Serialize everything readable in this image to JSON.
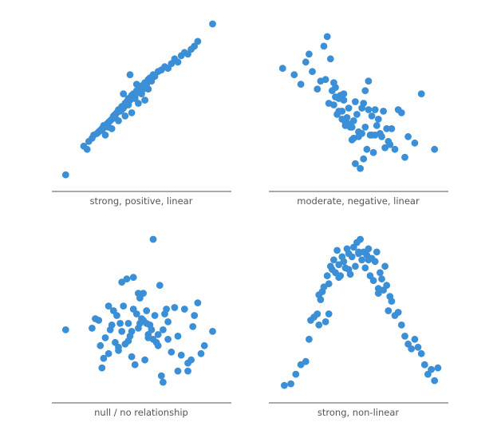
{
  "colors": {
    "points": "#3a8fd6",
    "axis": "#555555",
    "label": "#555555",
    "background": "#ffffff"
  },
  "chart_data": [
    {
      "type": "scatter",
      "title": "",
      "xlabel": "strong, positive, linear",
      "ylabel": "",
      "grid": false,
      "xlim": [
        0,
        10
      ],
      "ylim": [
        0,
        10
      ],
      "x": [
        0.4,
        1.5,
        1.7,
        1.8,
        2.0,
        2.1,
        2.3,
        2.5,
        2.6,
        2.7,
        2.8,
        2.9,
        3.0,
        3.1,
        3.2,
        3.3,
        3.4,
        3.5,
        3.6,
        3.7,
        3.8,
        3.9,
        4.0,
        4.1,
        4.2,
        4.3,
        4.4,
        4.5,
        4.6,
        4.7,
        4.8,
        4.9,
        5.0,
        5.1,
        5.2,
        5.3,
        5.4,
        5.5,
        5.6,
        5.7,
        5.8,
        6.0,
        6.2,
        6.4,
        6.6,
        6.8,
        7.0,
        7.2,
        7.4,
        7.6,
        7.8,
        8.0,
        8.2,
        8.4,
        9.3,
        2.4,
        2.6,
        2.8,
        3.0,
        3.2,
        3.4,
        3.6,
        3.8,
        4.0,
        4.2,
        4.4,
        4.6,
        4.8,
        5.0,
        5.2,
        5.4,
        4.3,
        4.7,
        3.9,
        4.1
      ],
      "y": [
        0.5,
        2.3,
        2.1,
        2.6,
        2.8,
        3.0,
        3.1,
        3.3,
        3.4,
        3.6,
        3.5,
        3.7,
        3.8,
        3.9,
        4.0,
        4.2,
        4.1,
        4.4,
        4.6,
        4.5,
        4.8,
        4.7,
        5.0,
        5.1,
        5.3,
        5.2,
        5.5,
        5.6,
        5.4,
        5.8,
        5.7,
        6.0,
        6.1,
        5.9,
        6.3,
        6.2,
        6.5,
        6.6,
        6.4,
        6.8,
        6.7,
        7.0,
        7.1,
        7.3,
        7.2,
        7.5,
        7.8,
        7.6,
        8.0,
        8.2,
        8.1,
        8.4,
        8.6,
        8.9,
        10.0,
        3.2,
        3.3,
        3.0,
        3.5,
        3.4,
        4.3,
        3.9,
        4.6,
        4.2,
        4.9,
        4.4,
        5.3,
        5.0,
        5.6,
        5.2,
        5.9,
        6.8,
        6.2,
        5.6,
        4.9
      ]
    },
    {
      "type": "scatter",
      "title": "",
      "xlabel": "moderate, negative, linear",
      "ylabel": "",
      "grid": false,
      "xlim": [
        0,
        10
      ],
      "ylim": [
        0,
        10
      ],
      "x": [
        0.4,
        1.1,
        1.5,
        1.8,
        2.0,
        2.2,
        2.5,
        2.7,
        2.9,
        3.0,
        3.1,
        3.2,
        3.3,
        3.4,
        3.5,
        3.6,
        3.7,
        3.8,
        3.9,
        4.0,
        4.1,
        4.2,
        4.3,
        4.4,
        4.5,
        4.6,
        4.7,
        4.8,
        4.9,
        5.0,
        5.1,
        5.2,
        5.3,
        5.4,
        5.5,
        5.6,
        5.7,
        5.8,
        5.9,
        6.0,
        6.1,
        6.2,
        6.3,
        6.4,
        6.5,
        6.6,
        6.7,
        6.8,
        6.9,
        7.0,
        7.2,
        7.4,
        7.6,
        7.8,
        8.0,
        8.4,
        8.8,
        9.6,
        3.6,
        3.8,
        4.0,
        4.2,
        4.4,
        4.6,
        4.8,
        5.0,
        5.2,
        5.4,
        5.6,
        5.8,
        6.0,
        3.5,
        4.1,
        4.7,
        5.3
      ],
      "y": [
        7.2,
        6.8,
        6.2,
        7.6,
        8.1,
        7.0,
        5.9,
        6.4,
        8.6,
        6.5,
        9.2,
        5.0,
        7.8,
        5.8,
        4.9,
        6.0,
        4.3,
        5.3,
        5.5,
        4.5,
        5.2,
        3.8,
        4.1,
        4.7,
        3.5,
        2.7,
        3.9,
        1.2,
        4.3,
        3.2,
        0.9,
        3.1,
        1.5,
        3.5,
        2.1,
        6.4,
        3.0,
        4.2,
        1.9,
        3.0,
        3.6,
        4.0,
        3.1,
        2.9,
        4.5,
        2.2,
        3.4,
        2.6,
        2.4,
        3.4,
        2.1,
        4.6,
        4.4,
        1.6,
        2.9,
        2.5,
        5.6,
        2.1,
        5.4,
        4.5,
        4.0,
        3.6,
        3.7,
        3.5,
        5.1,
        2.9,
        4.7,
        5.8,
        4.6,
        3.0,
        4.6,
        6.3,
        5.6,
        2.8,
        5.0
      ]
    },
    {
      "type": "scatter",
      "title": "",
      "xlabel": "null / no relationship",
      "ylabel": "",
      "grid": false,
      "xlim": [
        0,
        10
      ],
      "ylim": [
        0,
        10
      ],
      "x": [
        0.4,
        2.0,
        2.2,
        2.4,
        2.5,
        2.7,
        2.8,
        3.0,
        3.1,
        3.2,
        3.3,
        3.4,
        3.5,
        3.6,
        3.7,
        3.8,
        3.9,
        4.0,
        4.1,
        4.2,
        4.3,
        4.4,
        4.5,
        4.6,
        4.7,
        4.8,
        4.9,
        5.0,
        5.1,
        5.2,
        5.3,
        5.4,
        5.5,
        5.6,
        5.7,
        5.8,
        5.9,
        6.0,
        6.1,
        6.2,
        6.3,
        6.4,
        6.5,
        6.6,
        6.8,
        7.0,
        7.2,
        7.4,
        7.6,
        7.8,
        8.0,
        8.2,
        8.4,
        8.6,
        8.8,
        9.3,
        4.9,
        5.1,
        5.3,
        3.8,
        4.4,
        2.6,
        3.0,
        3.6,
        4.2,
        4.8,
        5.4,
        6.0,
        6.6,
        7.2,
        7.8,
        8.1,
        6.3,
        5.7,
        4.5
      ],
      "y": [
        4.0,
        4.1,
        4.7,
        4.6,
        3.0,
        2.2,
        3.5,
        5.5,
        4.0,
        4.3,
        5.2,
        3.2,
        4.9,
        2.7,
        4.4,
        3.9,
        5.5,
        3.1,
        7.2,
        4.4,
        3.6,
        3.9,
        5.3,
        1.8,
        5.0,
        6.3,
        4.4,
        4.7,
        4.6,
        2.1,
        4.4,
        3.5,
        4.3,
        4.0,
        3.4,
        4.9,
        3.2,
        3.7,
        6.8,
        1.1,
        4.0,
        5.0,
        5.3,
        3.4,
        2.6,
        5.4,
        3.6,
        2.4,
        5.3,
        1.9,
        2.1,
        4.9,
        5.7,
        2.5,
        3.0,
        3.9,
        6.0,
        6.3,
        5.2,
        7.0,
        2.3,
        1.6,
        2.5,
        2.9,
        3.3,
        4.1,
        3.7,
        3.0,
        4.5,
        1.4,
        1.4,
        4.2,
        0.7,
        9.7,
        7.3
      ]
    },
    {
      "type": "scatter",
      "title": "",
      "xlabel": "strong, non-linear",
      "ylabel": "",
      "grid": false,
      "xlim": [
        0,
        10
      ],
      "ylim": [
        0,
        10
      ],
      "x": [
        0.5,
        0.9,
        1.2,
        1.5,
        1.8,
        2.0,
        2.1,
        2.3,
        2.5,
        2.6,
        2.7,
        2.8,
        2.9,
        3.0,
        3.1,
        3.2,
        3.3,
        3.4,
        3.5,
        3.6,
        3.7,
        3.8,
        3.9,
        4.0,
        4.1,
        4.2,
        4.3,
        4.4,
        4.5,
        4.6,
        4.7,
        4.8,
        4.9,
        5.0,
        5.1,
        5.2,
        5.3,
        5.4,
        5.5,
        5.6,
        5.7,
        5.8,
        5.9,
        6.0,
        6.1,
        6.2,
        6.3,
        6.4,
        6.5,
        6.6,
        6.7,
        6.8,
        6.9,
        7.0,
        7.2,
        7.4,
        7.6,
        7.8,
        8.0,
        8.2,
        8.4,
        8.6,
        8.8,
        9.0,
        9.2,
        9.4,
        9.6,
        9.8,
        4.4,
        5.0,
        5.6,
        3.2,
        3.8,
        2.6,
        6.2
      ],
      "y": [
        0.5,
        0.6,
        1.2,
        1.8,
        2.0,
        3.4,
        4.6,
        4.8,
        5.0,
        4.3,
        5.9,
        6.4,
        6.7,
        4.5,
        7.4,
        5.0,
        8.0,
        7.8,
        8.4,
        7.6,
        9.0,
        8.1,
        7.4,
        8.6,
        8.3,
        7.9,
        9.1,
        8.8,
        7.5,
        8.6,
        9.2,
        8.0,
        9.5,
        8.8,
        9.7,
        8.4,
        8.9,
        7.9,
        8.7,
        9.1,
        7.4,
        8.5,
        7.1,
        8.3,
        8.9,
        6.3,
        7.6,
        7.2,
        6.5,
        8.0,
        6.8,
        5.2,
        6.1,
        5.8,
        4.9,
        5.1,
        4.3,
        3.6,
        3.1,
        2.8,
        3.4,
        2.9,
        2.5,
        1.8,
        1.2,
        1.5,
        0.8,
        1.6,
        7.8,
        8.9,
        8.4,
        6.9,
        7.3,
        6.2,
        6.6
      ]
    }
  ]
}
